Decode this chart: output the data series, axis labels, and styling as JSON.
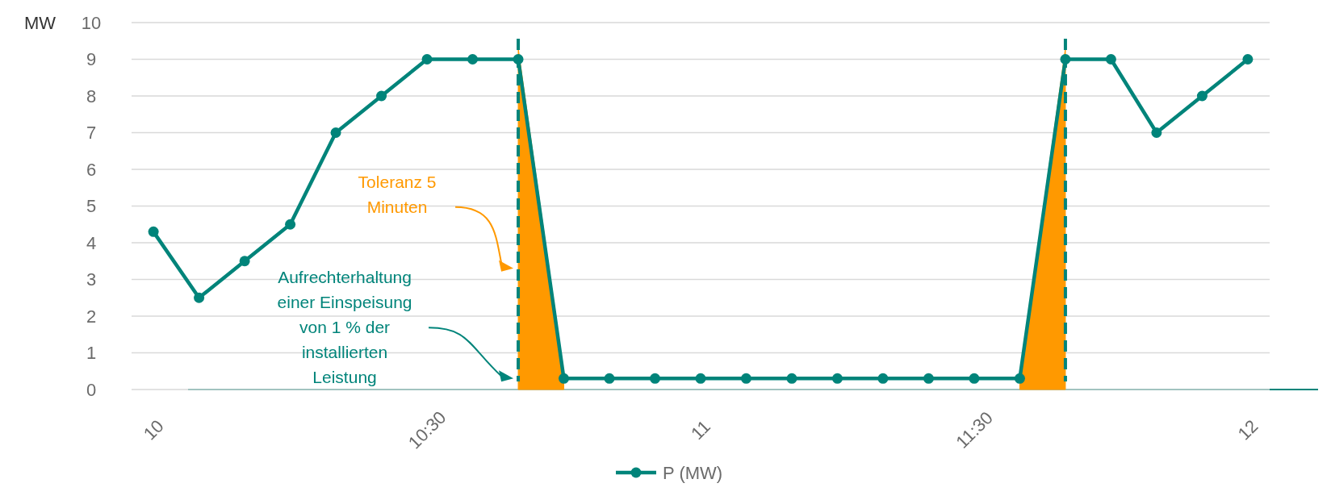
{
  "chart_data": {
    "type": "line",
    "ylabel": "MW",
    "x": [
      10,
      10.0833,
      10.1667,
      10.25,
      10.3333,
      10.4167,
      10.5,
      10.5833,
      10.6667,
      10.75,
      10.8333,
      10.9167,
      11,
      11.0833,
      11.1667,
      11.25,
      11.3333,
      11.4167,
      11.5,
      11.5833,
      11.6667,
      11.75,
      11.8333,
      11.9167,
      12
    ],
    "series": [
      {
        "name": "P (MW)",
        "color": "#00847a",
        "values": [
          4.3,
          2.5,
          3.5,
          4.5,
          7,
          8,
          9,
          9,
          9,
          0.3,
          0.3,
          0.3,
          0.3,
          0.3,
          0.3,
          0.3,
          0.3,
          0.3,
          0.3,
          0.3,
          9,
          9,
          7,
          8,
          9
        ]
      },
      {
        "type": "area",
        "color": "#ff9900",
        "marker": "none",
        "x": [
          10.6667,
          10.75
        ],
        "values": [
          9.3,
          0.4
        ]
      },
      {
        "type": "area",
        "color": "#ff9900",
        "marker": "none",
        "x": [
          11.5833,
          11.6667
        ],
        "values": [
          0.3,
          9.3
        ]
      }
    ],
    "xlim": [
      9.96,
      12.04
    ],
    "ylim": [
      0,
      10
    ],
    "xticks": [
      10,
      {
        "value": 10.5,
        "label": "10:30"
      },
      11,
      {
        "value": 11.5,
        "label": "11:30"
      },
      12
    ],
    "yticks": [
      0,
      1,
      2,
      3,
      4,
      5,
      6,
      7,
      8,
      9,
      10
    ],
    "ref_lines": [
      {
        "axis": "x",
        "value": 10.6667,
        "color": "#00847a",
        "line_style": "dashed"
      },
      {
        "axis": "x",
        "value": 11.6667,
        "color": "#00847a",
        "line_style": "dashed"
      }
    ],
    "annotations": [
      "Toleranz 5 Minuten",
      "Aufrechterhaltung einer Einspeisung von 1 % der installierten Leistung"
    ],
    "grid": "y",
    "legend": "bottom",
    "marker": "circle",
    "line_style": "solid"
  }
}
